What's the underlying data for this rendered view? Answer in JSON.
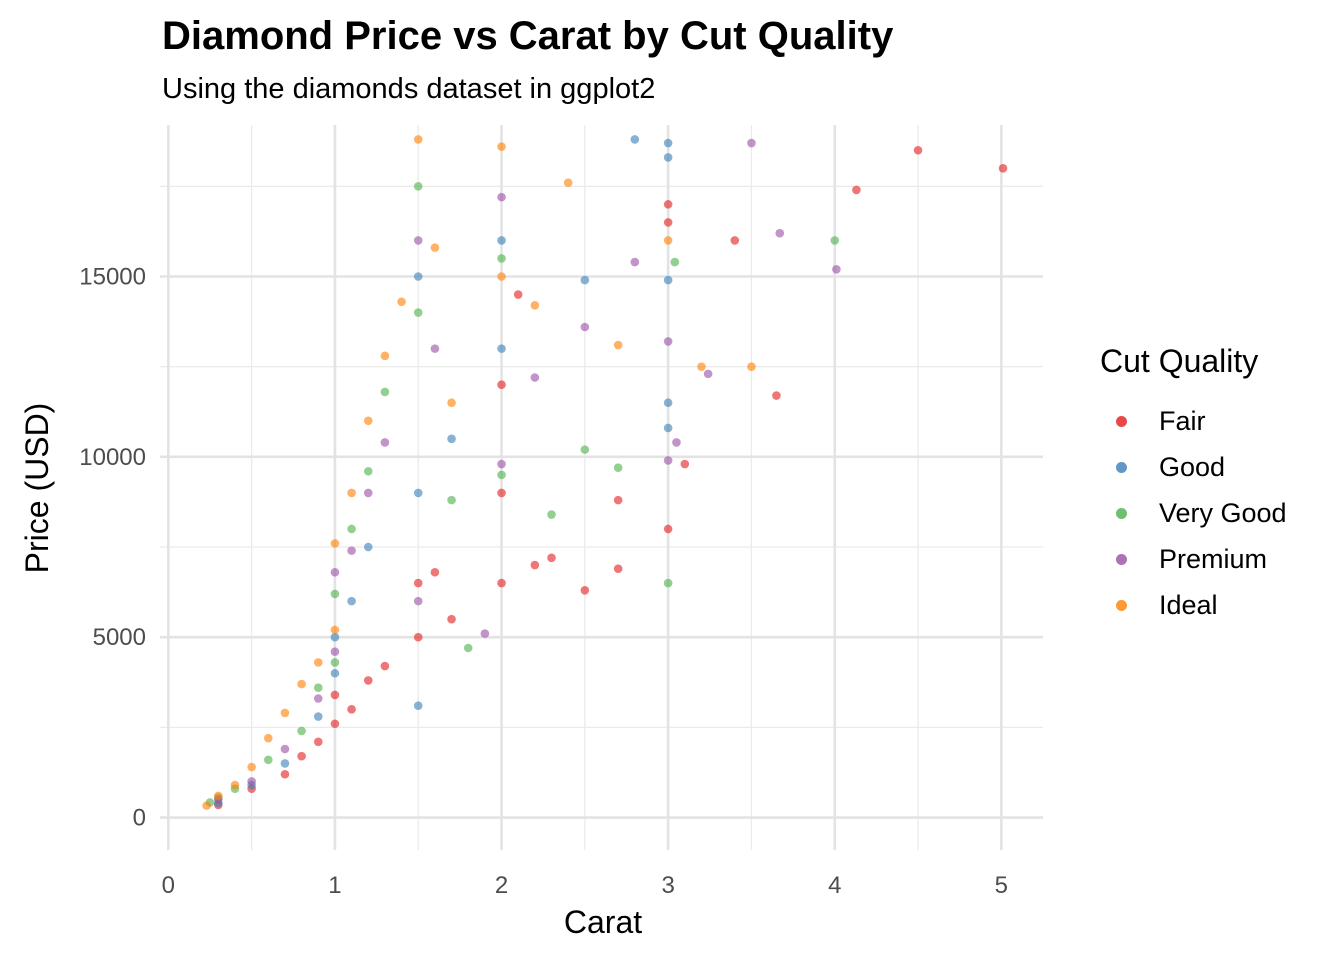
{
  "chart_data": {
    "type": "scatter",
    "title": "Diamond Price vs Carat by Cut Quality",
    "subtitle": "Using the diamonds dataset in ggplot2",
    "xlabel": "Carat",
    "ylabel": "Price (USD)",
    "xlim": [
      -0.05,
      5.25
    ],
    "ylim": [
      -900,
      19200
    ],
    "x_ticks": [
      0,
      1,
      2,
      3,
      4,
      5
    ],
    "y_ticks": [
      0,
      5000,
      10000,
      15000
    ],
    "x_tick_labels": [
      "0",
      "1",
      "2",
      "3",
      "4",
      "5"
    ],
    "y_tick_labels": [
      "0",
      "5000",
      "10000",
      "15000"
    ],
    "grid": true,
    "legend": {
      "title": "Cut Quality",
      "placement": "right",
      "entries": [
        "Fair",
        "Good",
        "Very Good",
        "Premium",
        "Ideal"
      ]
    },
    "series": [
      {
        "name": "Fair",
        "color": "#E41A1C",
        "points": [
          [
            0.3,
            350
          ],
          [
            0.5,
            800
          ],
          [
            0.7,
            1200
          ],
          [
            0.8,
            1700
          ],
          [
            0.9,
            2100
          ],
          [
            1.0,
            2600
          ],
          [
            1.0,
            3400
          ],
          [
            1.1,
            3000
          ],
          [
            1.2,
            3800
          ],
          [
            1.3,
            4200
          ],
          [
            1.5,
            5000
          ],
          [
            1.5,
            6500
          ],
          [
            1.6,
            6800
          ],
          [
            1.7,
            5500
          ],
          [
            2.0,
            6500
          ],
          [
            2.0,
            9000
          ],
          [
            2.0,
            12000
          ],
          [
            2.1,
            14500
          ],
          [
            2.2,
            7000
          ],
          [
            2.3,
            7200
          ],
          [
            2.5,
            6300
          ],
          [
            2.7,
            6900
          ],
          [
            2.7,
            8800
          ],
          [
            3.0,
            8000
          ],
          [
            3.0,
            17000
          ],
          [
            3.0,
            16500
          ],
          [
            3.1,
            9800
          ],
          [
            3.4,
            16000
          ],
          [
            3.65,
            11700
          ],
          [
            4.13,
            17400
          ],
          [
            4.5,
            18500
          ],
          [
            5.01,
            18000
          ]
        ]
      },
      {
        "name": "Good",
        "color": "#377EB8",
        "points": [
          [
            0.3,
            400
          ],
          [
            0.5,
            900
          ],
          [
            0.7,
            1500
          ],
          [
            0.9,
            2800
          ],
          [
            1.0,
            4000
          ],
          [
            1.0,
            5000
          ],
          [
            1.1,
            6000
          ],
          [
            1.2,
            7500
          ],
          [
            1.5,
            3100
          ],
          [
            1.5,
            9000
          ],
          [
            1.5,
            15000
          ],
          [
            1.7,
            10500
          ],
          [
            2.0,
            13000
          ],
          [
            2.0,
            16000
          ],
          [
            2.5,
            14900
          ],
          [
            2.8,
            18800
          ],
          [
            3.0,
            10800
          ],
          [
            3.0,
            11500
          ],
          [
            3.0,
            14900
          ],
          [
            3.0,
            18300
          ],
          [
            3.0,
            18700
          ]
        ]
      },
      {
        "name": "Very Good",
        "color": "#4DAF4A",
        "points": [
          [
            0.25,
            420
          ],
          [
            0.3,
            550
          ],
          [
            0.4,
            800
          ],
          [
            0.6,
            1600
          ],
          [
            0.8,
            2400
          ],
          [
            0.9,
            3600
          ],
          [
            1.0,
            4300
          ],
          [
            1.0,
            6200
          ],
          [
            1.1,
            8000
          ],
          [
            1.2,
            9600
          ],
          [
            1.3,
            11800
          ],
          [
            1.5,
            14000
          ],
          [
            1.5,
            17500
          ],
          [
            1.7,
            8800
          ],
          [
            1.8,
            4700
          ],
          [
            2.0,
            9500
          ],
          [
            2.0,
            15500
          ],
          [
            2.3,
            8400
          ],
          [
            2.5,
            10200
          ],
          [
            2.7,
            9700
          ],
          [
            3.0,
            6500
          ],
          [
            3.04,
            15400
          ],
          [
            4.0,
            16000
          ]
        ]
      },
      {
        "name": "Premium",
        "color": "#984EA3",
        "points": [
          [
            0.3,
            500
          ],
          [
            0.5,
            1000
          ],
          [
            0.7,
            1900
          ],
          [
            0.9,
            3300
          ],
          [
            1.0,
            4600
          ],
          [
            1.0,
            6800
          ],
          [
            1.1,
            7400
          ],
          [
            1.2,
            9000
          ],
          [
            1.3,
            10400
          ],
          [
            1.5,
            6000
          ],
          [
            1.5,
            16000
          ],
          [
            1.6,
            13000
          ],
          [
            1.9,
            5100
          ],
          [
            2.0,
            9800
          ],
          [
            2.0,
            17200
          ],
          [
            2.2,
            12200
          ],
          [
            2.5,
            13600
          ],
          [
            2.8,
            15400
          ],
          [
            3.0,
            9900
          ],
          [
            3.0,
            13200
          ],
          [
            3.05,
            10400
          ],
          [
            3.24,
            12300
          ],
          [
            3.5,
            18700
          ],
          [
            3.67,
            16200
          ],
          [
            4.01,
            15200
          ]
        ]
      },
      {
        "name": "Ideal",
        "color": "#FF7F00",
        "points": [
          [
            0.23,
            330
          ],
          [
            0.3,
            600
          ],
          [
            0.4,
            900
          ],
          [
            0.5,
            1400
          ],
          [
            0.6,
            2200
          ],
          [
            0.7,
            2900
          ],
          [
            0.8,
            3700
          ],
          [
            0.9,
            4300
          ],
          [
            1.0,
            5200
          ],
          [
            1.0,
            7600
          ],
          [
            1.1,
            9000
          ],
          [
            1.2,
            11000
          ],
          [
            1.3,
            12800
          ],
          [
            1.4,
            14300
          ],
          [
            1.5,
            18800
          ],
          [
            1.6,
            15800
          ],
          [
            1.7,
            11500
          ],
          [
            2.0,
            15000
          ],
          [
            2.0,
            18600
          ],
          [
            2.2,
            14200
          ],
          [
            2.4,
            17600
          ],
          [
            2.7,
            13100
          ],
          [
            3.0,
            16000
          ],
          [
            3.2,
            12500
          ],
          [
            3.5,
            12500
          ]
        ]
      }
    ]
  }
}
